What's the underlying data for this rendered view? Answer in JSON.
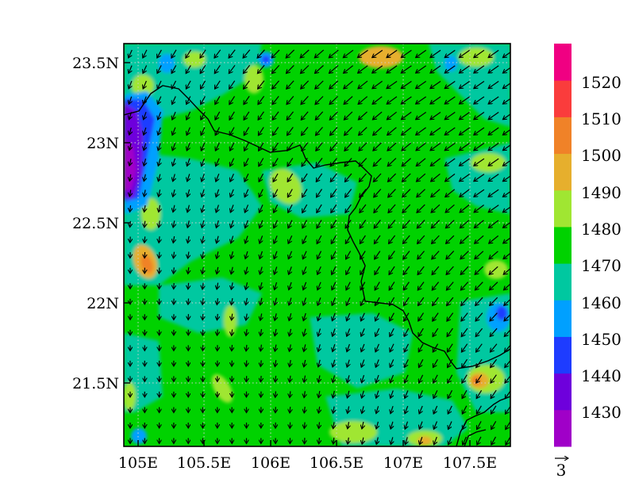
{
  "chart_data": {
    "type": "heatmap",
    "title": "",
    "variable_units": "",
    "x_ticks": [
      "105E",
      "105.5E",
      "106E",
      "106.5E",
      "107E",
      "107.5E"
    ],
    "x_tick_values": [
      105.0,
      105.5,
      106.0,
      106.5,
      107.0,
      107.5
    ],
    "y_ticks": [
      "23.5N",
      "23N",
      "22.5N",
      "22N",
      "21.5N"
    ],
    "y_tick_values": [
      23.5,
      23.0,
      22.5,
      22.0,
      21.5
    ],
    "xlim": [
      104.95,
      107.8
    ],
    "ylim": [
      21.1,
      23.63
    ],
    "grid": "dotted",
    "legend": "colorbar-right",
    "colorbar": {
      "levels": [
        1430,
        1440,
        1450,
        1460,
        1470,
        1480,
        1490,
        1500,
        1510,
        1520
      ],
      "labels": [
        "1430",
        "1440",
        "1450",
        "1460",
        "1470",
        "1480",
        "1490",
        "1500",
        "1510",
        "1520"
      ],
      "colors": [
        "#a000c8",
        "#6e00dc",
        "#1e3cff",
        "#00a0ff",
        "#00c8a0",
        "#00d200",
        "#a0e632",
        "#e6af2d",
        "#f08228",
        "#fa3c3c",
        "#f00082"
      ]
    },
    "vector_reference": {
      "label": "3"
    },
    "features": [
      "border-line"
    ]
  }
}
